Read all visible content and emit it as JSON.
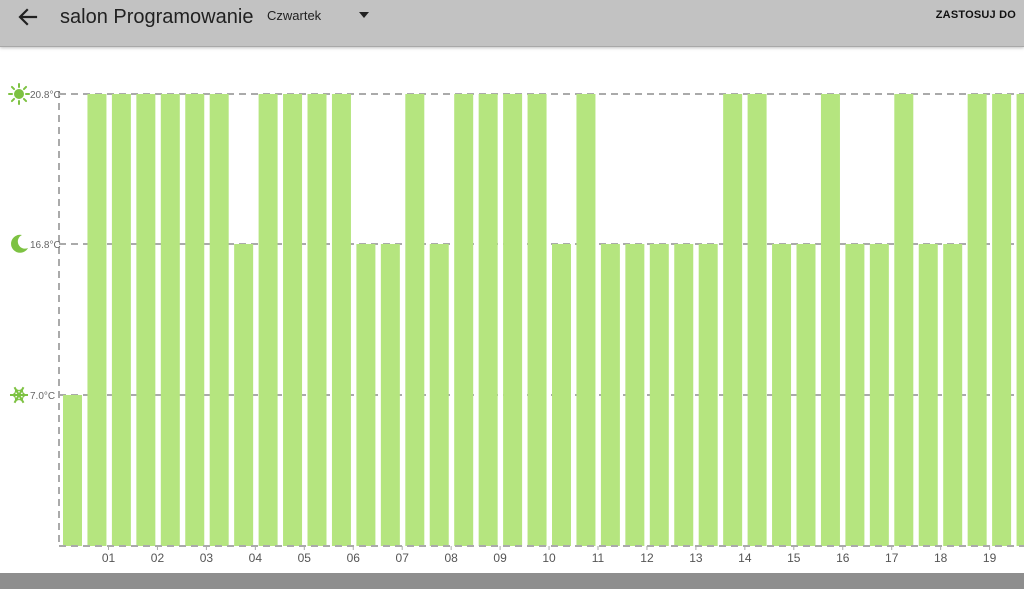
{
  "header": {
    "title": "salon Programowanie",
    "day": "Czwartek",
    "apply_label": "ZASTOSUJ DO",
    "back_icon": "arrow-left-icon",
    "dropdown_icon": "caret-down-icon"
  },
  "colors": {
    "appbar": "#c2c2c2",
    "bar": "#b5e57f",
    "icon": "#7dc242",
    "grid": "#aaaaaa",
    "bottombar": "#8e8e8e"
  },
  "chart_data": {
    "type": "bar",
    "title": "",
    "xlabel": "",
    "ylabel": "",
    "levels": [
      {
        "name": "comfort",
        "label": "20.8°C",
        "icon": "sun-icon",
        "value": 20.8
      },
      {
        "name": "eco",
        "label": "16.8°C",
        "icon": "moon-icon",
        "value": 16.8
      },
      {
        "name": "frost",
        "label": "7.0°C",
        "icon": "snowflake-icon",
        "value": 7.0
      }
    ],
    "x_tick_labels": [
      "01",
      "02",
      "03",
      "04",
      "05",
      "06",
      "07",
      "08",
      "09",
      "10",
      "11",
      "12",
      "13",
      "14",
      "15",
      "16",
      "17",
      "18",
      "19"
    ],
    "slot_values": [
      7.0,
      20.8,
      20.8,
      20.8,
      20.8,
      20.8,
      20.8,
      16.8,
      20.8,
      20.8,
      20.8,
      20.8,
      16.8,
      16.8,
      20.8,
      16.8,
      20.8,
      20.8,
      20.8,
      20.8,
      16.8,
      20.8,
      16.8,
      16.8,
      16.8,
      16.8,
      16.8,
      20.8,
      20.8,
      16.8,
      16.8,
      20.8,
      16.8,
      16.8,
      20.8,
      16.8,
      16.8,
      20.8,
      20.8,
      20.8
    ],
    "grid": true
  }
}
